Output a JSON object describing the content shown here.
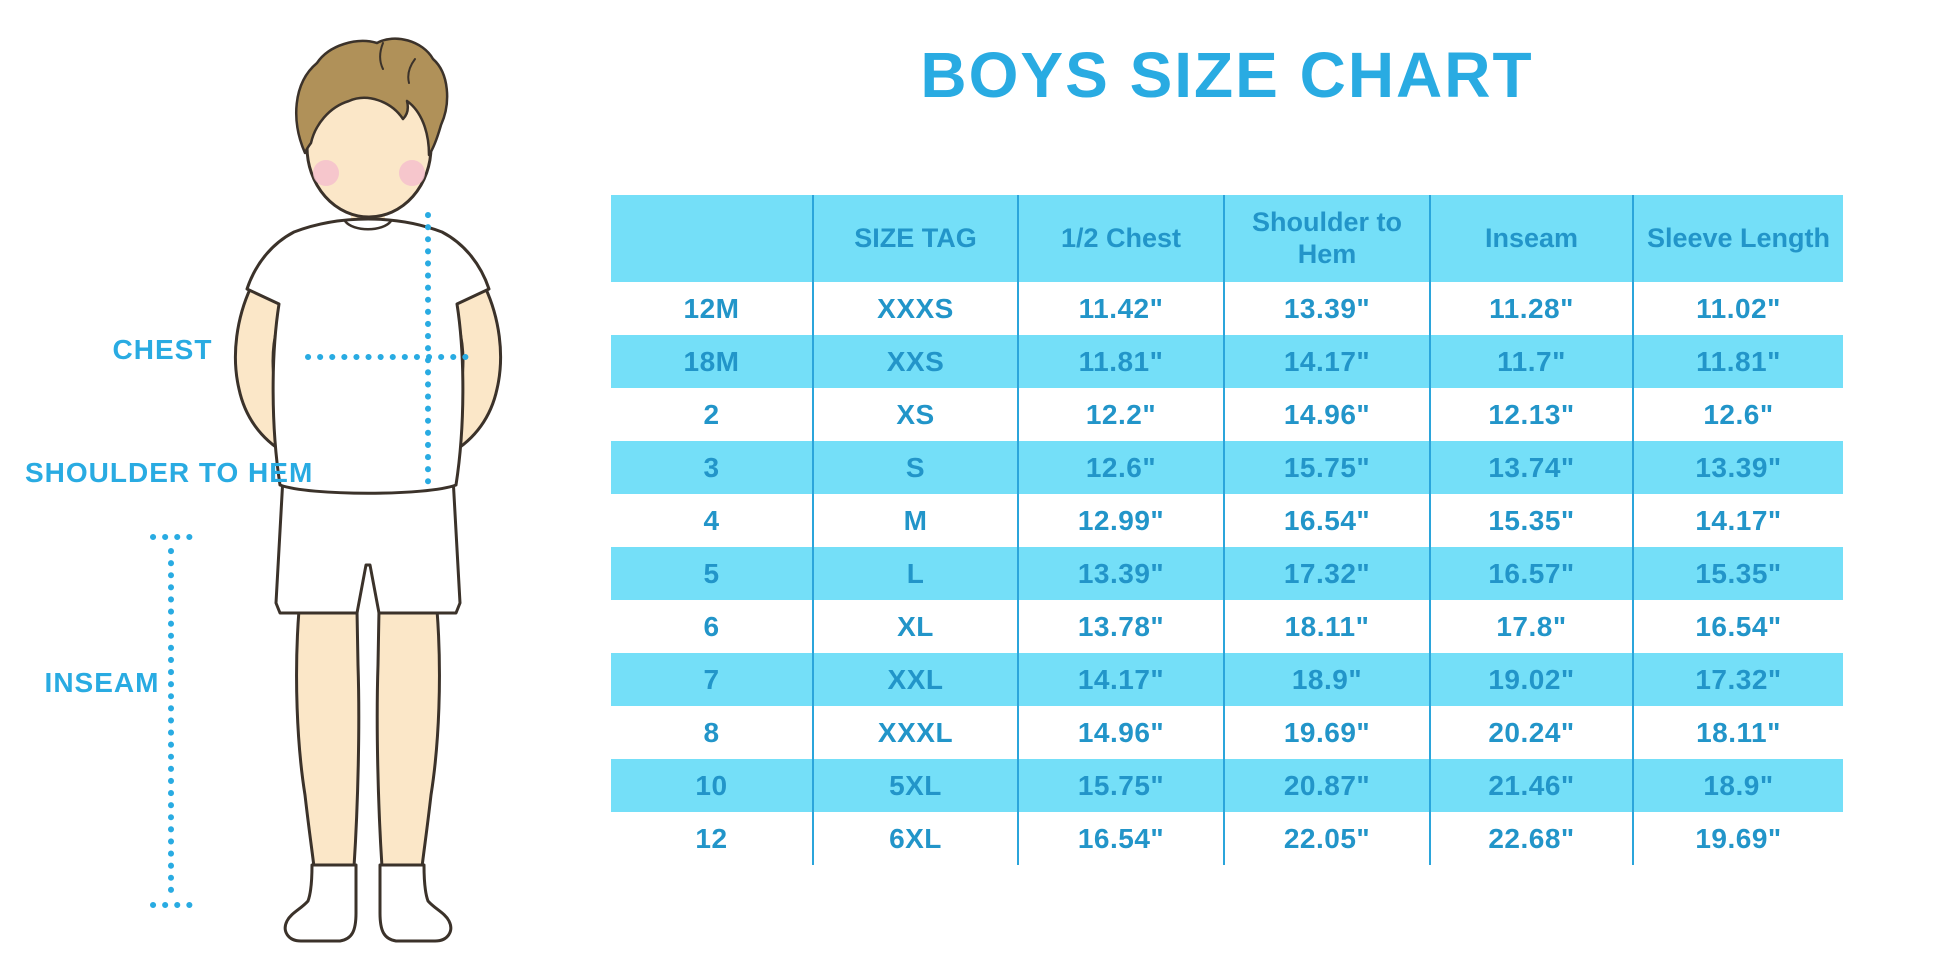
{
  "page": {
    "title": "BOYS SIZE CHART"
  },
  "colors": {
    "accent": "#29ABE2",
    "table_text": "#2295C9",
    "band": "#74DFF8",
    "divider": "#2BA5DB",
    "skin": "#FBE7C8",
    "hair": "#B09159",
    "blush": "#F5BFCD",
    "outline": "#3B322A"
  },
  "figure": {
    "labels": [
      {
        "id": "chest",
        "text": "CHEST"
      },
      {
        "id": "shoulder-to-hem",
        "text": "SHOULDER TO HEM"
      },
      {
        "id": "inseam",
        "text": "INSEAM"
      }
    ]
  },
  "chart_data": {
    "type": "table",
    "title": "BOYS SIZE CHART",
    "columns": [
      "",
      "SIZE TAG",
      "1/2 Chest",
      "Shoulder to Hem",
      "Inseam",
      "Sleeve Length"
    ],
    "rows": [
      [
        "12M",
        "XXXS",
        "11.42\"",
        "13.39\"",
        "11.28\"",
        "11.02\""
      ],
      [
        "18M",
        "XXS",
        "11.81\"",
        "14.17\"",
        "11.7\"",
        "11.81\""
      ],
      [
        "2",
        "XS",
        "12.2\"",
        "14.96\"",
        "12.13\"",
        "12.6\""
      ],
      [
        "3",
        "S",
        "12.6\"",
        "15.75\"",
        "13.74\"",
        "13.39\""
      ],
      [
        "4",
        "M",
        "12.99\"",
        "16.54\"",
        "15.35\"",
        "14.17\""
      ],
      [
        "5",
        "L",
        "13.39\"",
        "17.32\"",
        "16.57\"",
        "15.35\""
      ],
      [
        "6",
        "XL",
        "13.78\"",
        "18.11\"",
        "17.8\"",
        "16.54\""
      ],
      [
        "7",
        "XXL",
        "14.17\"",
        "18.9\"",
        "19.02\"",
        "17.32\""
      ],
      [
        "8",
        "XXXL",
        "14.96\"",
        "19.69\"",
        "20.24\"",
        "18.11\""
      ],
      [
        "10",
        "5XL",
        "15.75\"",
        "20.87\"",
        "21.46\"",
        "18.9\""
      ],
      [
        "12",
        "6XL",
        "16.54\"",
        "22.05\"",
        "22.68\"",
        "19.69\""
      ]
    ]
  }
}
